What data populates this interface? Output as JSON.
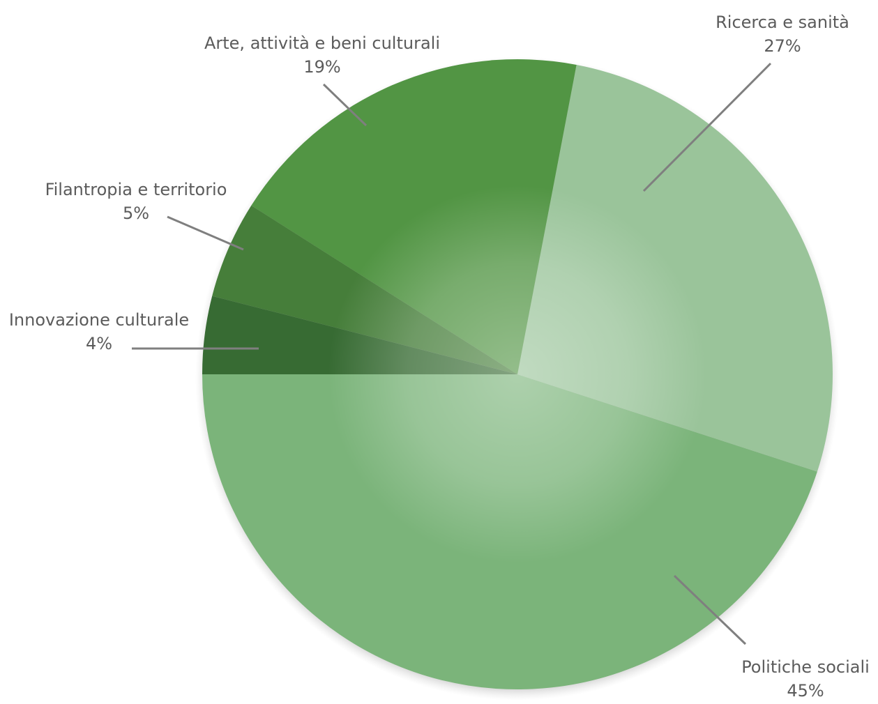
{
  "chart_data": {
    "type": "pie",
    "categories": [
      "Politiche sociali",
      "Ricerca e sanità",
      "Arte, attività e beni culturali",
      "Filantropia e territorio",
      "Innovazione culturale"
    ],
    "values": [
      45,
      27,
      19,
      5,
      4
    ],
    "value_labels": [
      "45%",
      "27%",
      "19%",
      "5%",
      "4%"
    ],
    "colors": [
      "#7bb47a",
      "#9ac49a",
      "#529544",
      "#467e3a",
      "#376b33"
    ],
    "start_angle_deg": 180,
    "direction": "counterclockwise",
    "legend": "none"
  }
}
